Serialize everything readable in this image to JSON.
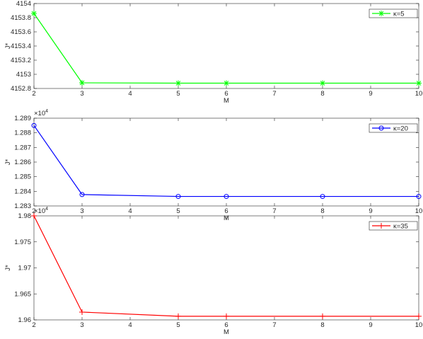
{
  "chart_data": [
    {
      "type": "line",
      "xlabel": "M",
      "ylabel": "J*",
      "x": [
        2,
        3,
        5,
        6,
        8,
        10
      ],
      "series": [
        {
          "name": "κ=5",
          "color": "#00ff00",
          "marker": "asterisk",
          "values": [
            4153.86,
            4152.88,
            4152.875,
            4152.875,
            4152.875,
            4152.875
          ]
        }
      ],
      "xlim": [
        2,
        10
      ],
      "xticks": [
        2,
        3,
        4,
        5,
        6,
        7,
        8,
        9,
        10
      ],
      "ylim": [
        4152.8,
        4154
      ],
      "yticks": [
        4152.8,
        4153,
        4153.2,
        4153.4,
        4153.6,
        4153.8,
        4154
      ],
      "legend": "upper right"
    },
    {
      "type": "line",
      "xlabel": "M",
      "ylabel": "J*",
      "y_scale": "×10",
      "y_scale_power": "4",
      "x": [
        2,
        3,
        5,
        6,
        8,
        10
      ],
      "series": [
        {
          "name": "κ=20",
          "color": "#0000ff",
          "marker": "circle",
          "values": [
            1.2885,
            1.28378,
            1.28365,
            1.28365,
            1.28365,
            1.28365
          ]
        }
      ],
      "xlim": [
        2,
        10
      ],
      "xticks": [
        2,
        3,
        4,
        5,
        6,
        7,
        8,
        9,
        10
      ],
      "ylim": [
        1.283,
        1.289
      ],
      "yticks": [
        1.283,
        1.284,
        1.285,
        1.286,
        1.287,
        1.288,
        1.289
      ],
      "legend": "upper right"
    },
    {
      "type": "line",
      "xlabel": "M",
      "ylabel": "J*",
      "y_scale": "×10",
      "y_scale_power": "4",
      "x": [
        2,
        3,
        5,
        6,
        8,
        10
      ],
      "series": [
        {
          "name": "κ=35",
          "color": "#ff0000",
          "marker": "plus",
          "values": [
            1.98,
            1.9615,
            1.9607,
            1.9607,
            1.9607,
            1.9607
          ]
        }
      ],
      "xlim": [
        2,
        10
      ],
      "xticks": [
        2,
        3,
        4,
        5,
        6,
        7,
        8,
        9,
        10
      ],
      "ylim": [
        1.96,
        1.98
      ],
      "yticks": [
        1.96,
        1.965,
        1.97,
        1.975,
        1.98
      ],
      "legend": "upper right"
    }
  ]
}
